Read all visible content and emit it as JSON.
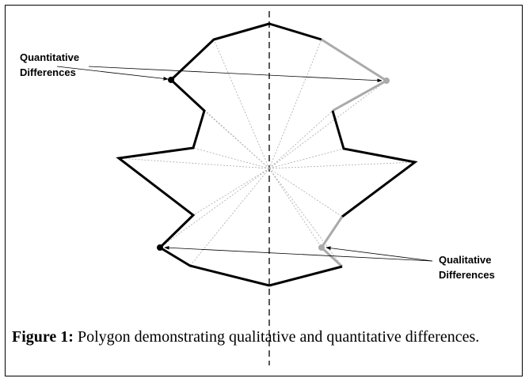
{
  "annotations": {
    "quantitative": {
      "lines": [
        "Quantitative",
        "Differences"
      ]
    },
    "qualitative": {
      "lines": [
        "Qualitative",
        "Differences"
      ]
    }
  },
  "caption": {
    "label": "Figure 1:",
    "text": "Polygon demonstrating qualitative and quantitative differences."
  }
}
